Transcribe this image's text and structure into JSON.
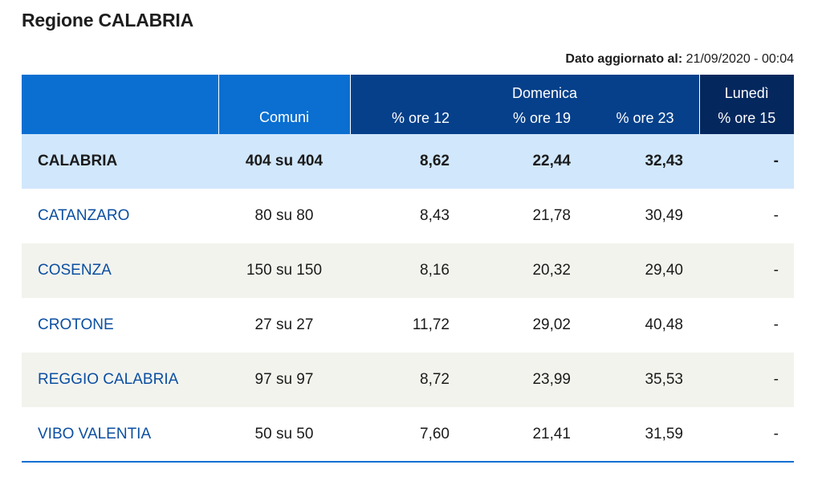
{
  "title": "Regione CALABRIA",
  "update": {
    "label": "Dato aggiornato al:",
    "value": "21/09/2020 - 00:04"
  },
  "header": {
    "comuni": "Comuni",
    "domenica": "Domenica",
    "lunedi": "Lunedì",
    "ore12": "% ore 12",
    "ore19": "% ore 19",
    "ore23": "% ore 23",
    "ore15": "% ore 15"
  },
  "rows": [
    {
      "name": "CALABRIA",
      "comuni": "404 su 404",
      "ore12": "8,62",
      "ore19": "22,44",
      "ore23": "32,43",
      "lun15": "-"
    },
    {
      "name": "CATANZARO",
      "comuni": "80 su 80",
      "ore12": "8,43",
      "ore19": "21,78",
      "ore23": "30,49",
      "lun15": "-"
    },
    {
      "name": "COSENZA",
      "comuni": "150 su 150",
      "ore12": "8,16",
      "ore19": "20,32",
      "ore23": "29,40",
      "lun15": "-"
    },
    {
      "name": "CROTONE",
      "comuni": "27 su 27",
      "ore12": "11,72",
      "ore19": "29,02",
      "ore23": "40,48",
      "lun15": "-"
    },
    {
      "name": "REGGIO CALABRIA",
      "comuni": "97 su 97",
      "ore12": "8,72",
      "ore19": "23,99",
      "ore23": "35,53",
      "lun15": "-"
    },
    {
      "name": "VIBO VALENTIA",
      "comuni": "50 su 50",
      "ore12": "7,60",
      "ore19": "21,41",
      "ore23": "31,59",
      "lun15": "-"
    }
  ],
  "colors": {
    "header_blue": "#0a6fd1",
    "header_dark": "#06408a",
    "header_darkest": "#04285e",
    "total_row": "#d1e7fb",
    "alt_row": "#f3f3ee",
    "link": "#0b4fa1"
  }
}
